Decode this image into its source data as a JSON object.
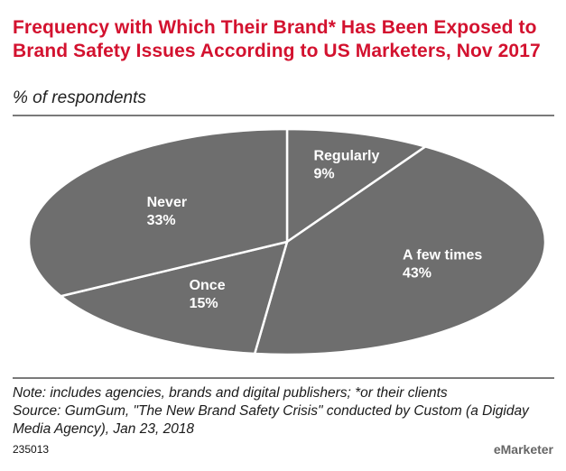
{
  "header": {
    "title": "Frequency with Which Their Brand* Has Been Exposed to Brand Safety Issues According to US Marketers, Nov 2017",
    "subtitle": "% of respondents"
  },
  "chart_data": {
    "type": "pie",
    "title": "Frequency with Which Their Brand* Has Been Exposed to Brand Safety Issues According to US Marketers, Nov 2017",
    "subtitle": "% of respondents",
    "slices": [
      {
        "label": "Regularly",
        "value": 9,
        "display": "9%"
      },
      {
        "label": "A few times",
        "value": 43,
        "display": "43%"
      },
      {
        "label": "Once",
        "value": 15,
        "display": "15%"
      },
      {
        "label": "Never",
        "value": 33,
        "display": "33%"
      }
    ],
    "colors": {
      "slice_fill": "#6e6e6e",
      "slice_stroke": "#ffffff"
    }
  },
  "footer": {
    "note": "Note: includes agencies, brands and digital publishers; *or their clients",
    "source": "Source: GumGum, \"The New Brand Safety Crisis\" conducted by Custom (a Digiday Media Agency), Jan 23, 2018",
    "chart_id": "235013",
    "brand": "eMarketer"
  }
}
